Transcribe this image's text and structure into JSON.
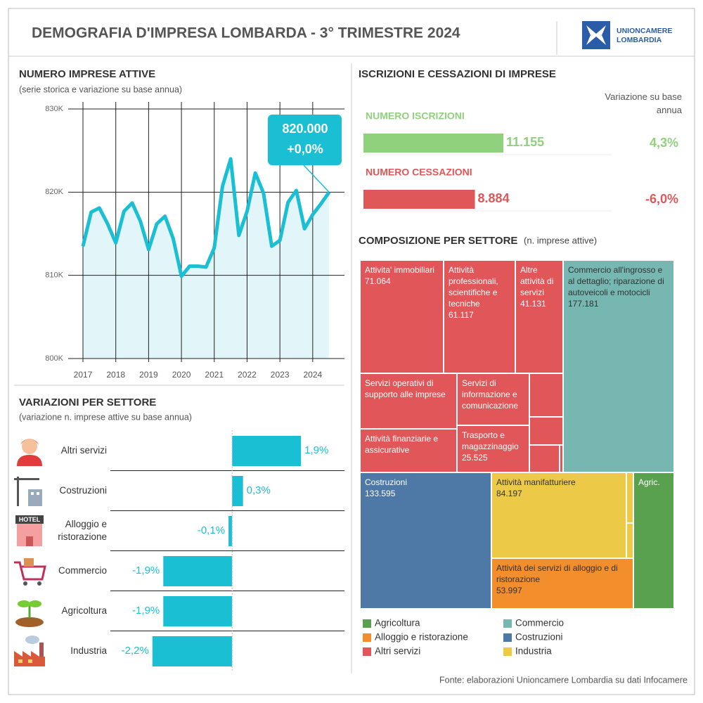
{
  "header": {
    "title": "DEMOGRAFIA D'IMPRESA LOMBARDA - 3° TRIMESTRE 2024",
    "logo": [
      "UNIONCAMERE",
      "LOMBARDIA"
    ]
  },
  "chart_data": [
    {
      "type": "line",
      "title": "NUMERO IMPRESE ATTIVE",
      "subtitle": "(serie storica e variazione su base annua)",
      "x": [
        2017,
        2017.25,
        2017.5,
        2017.75,
        2018,
        2018.25,
        2018.5,
        2018.75,
        2019,
        2019.25,
        2019.5,
        2019.75,
        2020,
        2020.25,
        2020.5,
        2020.75,
        2021,
        2021.25,
        2021.5,
        2021.75,
        2022,
        2022.25,
        2022.5,
        2022.75,
        2023,
        2023.25,
        2023.5,
        2023.75,
        2024,
        2024.25,
        2024.5
      ],
      "values": [
        813500,
        817600,
        818100,
        816200,
        813900,
        817700,
        818700,
        816500,
        813100,
        816200,
        817100,
        814400,
        809900,
        811100,
        811100,
        811000,
        813300,
        820700,
        824000,
        814800,
        817700,
        822300,
        819900,
        813500,
        814200,
        818800,
        820200,
        815600,
        817300,
        818600,
        820000
      ],
      "color": "#1bbfd3",
      "annotation": [
        "820.000",
        "+0,0%"
      ],
      "xlim": [
        2016.55,
        2024.86
      ],
      "xticks": [
        2017,
        2018,
        2019,
        2020,
        2021,
        2022,
        2023,
        2024
      ],
      "ylim": [
        800000,
        830000
      ],
      "yticks": [
        {
          "value": 800000,
          "label": "800K"
        },
        {
          "value": 810000,
          "label": "810K"
        },
        {
          "value": 820000,
          "label": "820K"
        },
        {
          "value": 830000,
          "label": "830K"
        }
      ],
      "grid": true
    },
    {
      "type": "kpi-bar",
      "title": "ISCRIZIONI E CESSAZIONI DI IMPRESE",
      "change_heading": "Variazione su base annua",
      "categories": [
        "NUMERO ISCRIZIONI",
        "NUMERO CESSAZIONI"
      ],
      "values": [
        11155,
        8884
      ],
      "value_labels": [
        "11.155",
        "8.884"
      ],
      "changes": [
        "4,3%",
        "-6,0%"
      ],
      "colors": [
        "#8fd17c",
        "#e05759"
      ],
      "xlim": [
        0,
        19780
      ]
    },
    {
      "type": "treemap",
      "title": "COMPOSIZIONE PER SETTORE",
      "subtitle": "(n. imprese attive)",
      "groups": [
        {
          "name": "Agricoltura",
          "color": "#59a14f"
        },
        {
          "name": "Commercio",
          "color": "#76b7b2"
        },
        {
          "name": "Alloggio e ristorazione",
          "color": "#f28e2b"
        },
        {
          "name": "Costruzioni",
          "color": "#4e79a7"
        },
        {
          "name": "Altri servizi",
          "color": "#e15759"
        },
        {
          "name": "Industria",
          "color": "#edc948"
        }
      ],
      "items": [
        {
          "name": "Attivita' immobiliari",
          "group": 4,
          "value": 71064,
          "value_label": "71.064"
        },
        {
          "name": "Attività professionali, scientifiche e tecniche",
          "group": 4,
          "value": 61117,
          "value_label": "61.117"
        },
        {
          "name": "Altre attività di servizi",
          "group": 4,
          "value": 41131,
          "value_label": "41.131"
        },
        {
          "name": "Servizi operativi di supporto alle imprese",
          "group": 4,
          "value": 39000
        },
        {
          "name": "Attività finanziarie e assicurative",
          "group": 4,
          "value": 31500
        },
        {
          "name": "Servizi di informazione e comunicazione",
          "group": 4,
          "value": 28000
        },
        {
          "name": "Trasporto e magazzinaggio",
          "group": 4,
          "value": 25525,
          "value_label": "25.525"
        },
        {
          "name": null,
          "group": 4,
          "value": 10500
        },
        {
          "name": null,
          "group": 4,
          "value": 6600
        },
        {
          "name": null,
          "group": 4,
          "value": 5800
        },
        {
          "name": null,
          "group": 4,
          "value": 560
        },
        {
          "name": "Commercio all'ingrosso e al dettaglio; riparazione di autoveicoli e motocicli",
          "group": 1,
          "value": 177181,
          "value_label": "177.181"
        },
        {
          "name": "Costruzioni",
          "group": 3,
          "value": 133595,
          "value_label": "133.595"
        },
        {
          "name": "Attività manifatturiere",
          "group": 5,
          "value": 84197,
          "value_label": "84.197"
        },
        {
          "name": null,
          "group": 5,
          "value": 2700
        },
        {
          "name": null,
          "group": 5,
          "value": 1800
        },
        {
          "name": "Attività dei servizi di alloggio e di ristorazione",
          "group": 2,
          "value": 53997,
          "value_label": "53.997"
        },
        {
          "name": "Agric.",
          "group": 0,
          "value": 40000
        }
      ]
    },
    {
      "type": "hbar",
      "title": "VARIAZIONI PER SETTORE",
      "subtitle": "(variazione n. imprese attive su base annua)",
      "categories": [
        "Altri servizi",
        "Costruzioni",
        "Alloggio e ristorazione",
        "Commercio",
        "Agricoltura",
        "Industria"
      ],
      "values": [
        1.9,
        0.3,
        -0.1,
        -1.9,
        -1.9,
        -2.2
      ],
      "value_labels": [
        "1,9%",
        "0,3%",
        "-0,1%",
        "-1,9%",
        "-1,9%",
        "-2,2%"
      ],
      "color": "#1bbfd3",
      "xlim": [
        -3.36,
        3.1
      ],
      "icon_text": "HOTEL"
    }
  ],
  "source": "Fonte: elaborazioni Unioncamere Lombardia su dati Infocamere"
}
